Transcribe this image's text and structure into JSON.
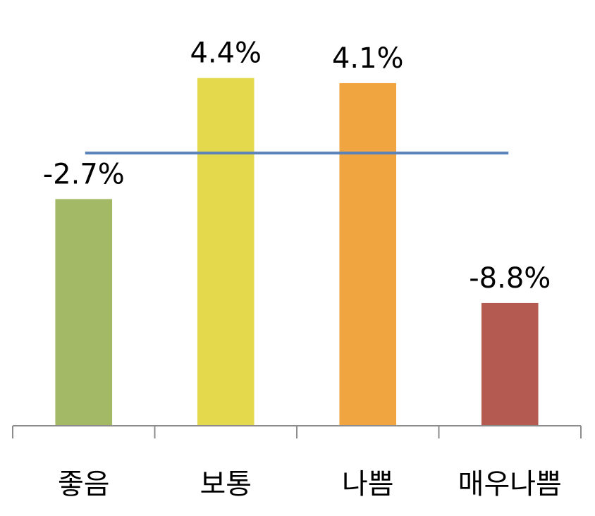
{
  "chart_data": {
    "type": "bar",
    "categories": [
      "좋음",
      "보통",
      "나쁨",
      "매우나쁨"
    ],
    "values": [
      -2.7,
      4.4,
      4.1,
      -8.8
    ],
    "data_labels": [
      "-2.7%",
      "4.4%",
      "4.1%",
      "-8.8%"
    ],
    "colors": [
      "#a3b966",
      "#e4d94c",
      "#f0a540",
      "#b55a50"
    ],
    "reference_line": {
      "value": 0,
      "color": "#5b83b9"
    },
    "title": "",
    "xlabel": "",
    "ylabel": "",
    "ylim": [
      -16,
      6
    ],
    "grid": false,
    "legend": "none"
  }
}
